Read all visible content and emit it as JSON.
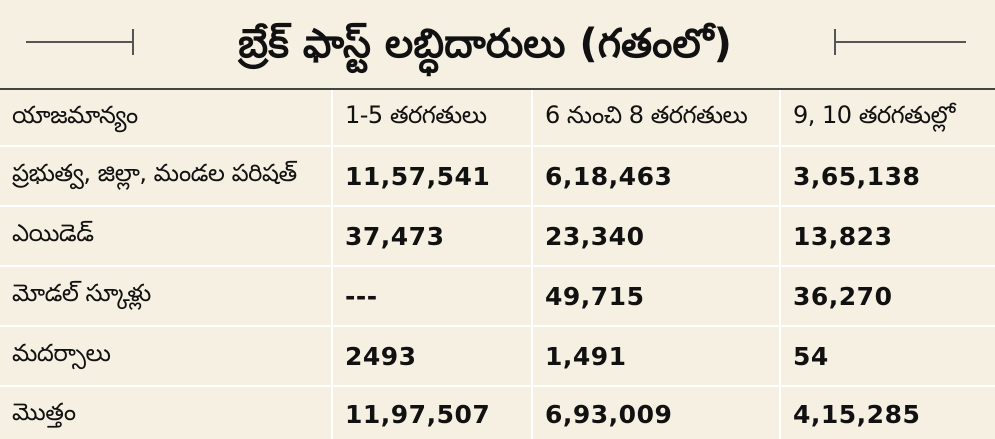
{
  "title": "బ్రేక్ ఫాస్ట్ లబ్ధిదారులు (గతంలో)",
  "table": {
    "headers": [
      "యాజమాన్యం",
      "1-5 తరగతులు",
      "6 నుంచి 8 తరగతులు",
      "9, 10 తరగతుల్లో"
    ],
    "rows": [
      [
        "ప్రభుత్వ, జిల్లా, మండల పరిషత్",
        "11,57,541",
        "6,18,463",
        "3,65,138"
      ],
      [
        "ఎయిడెడ్",
        "37,473",
        "23,340",
        "13,823"
      ],
      [
        "మోడల్ స్కూళ్లు",
        "---",
        "49,715",
        "36,270"
      ],
      [
        "మదర్సాలు",
        "2493",
        "1,491",
        "54"
      ],
      [
        "మొత్తం",
        "11,97,507",
        "6,93,009",
        "4,15,285"
      ]
    ]
  },
  "colors": {
    "background": "#f6f0e3",
    "grid": "#ffffff",
    "text": "#111111"
  }
}
